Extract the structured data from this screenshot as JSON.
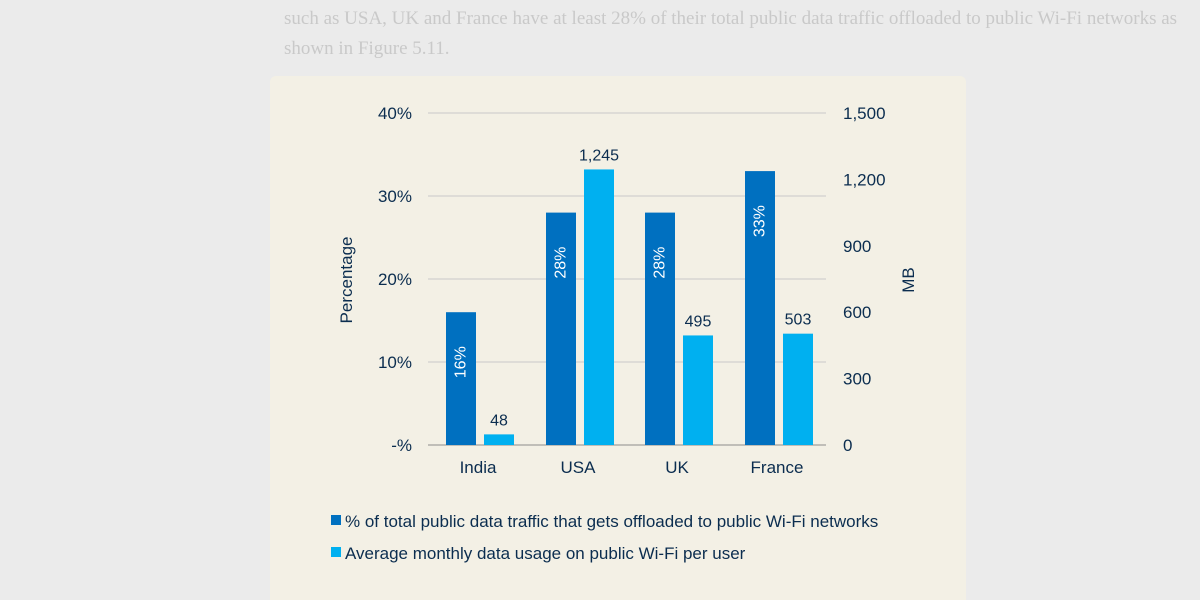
{
  "background_text": {
    "line1": "such as USA, UK and France have at least 28% of their total public data traffic offloaded to public Wi-Fi networks as",
    "line2": "shown in Figure 5.11."
  },
  "chart_data": {
    "type": "bar",
    "categories": [
      "India",
      "USA",
      "UK",
      "France"
    ],
    "series": [
      {
        "name": "% of total public data traffic that gets offloaded to public Wi-Fi networks",
        "axis": "left",
        "values": [
          16,
          28,
          28,
          33
        ],
        "labels": [
          "16%",
          "28%",
          "28%",
          "33%"
        ],
        "color": "#0070c0"
      },
      {
        "name": "Average monthly data usage on public Wi-Fi per user",
        "axis": "right",
        "values": [
          48,
          1245,
          495,
          503
        ],
        "labels": [
          "48",
          "1,245",
          "495",
          "503"
        ],
        "color": "#00b0f0"
      }
    ],
    "ylabel": "Percentage",
    "y2label": "MB",
    "ylim": [
      0,
      40
    ],
    "y2lim": [
      0,
      1500
    ],
    "yticks": [
      "-%",
      "10%",
      "20%",
      "30%",
      "40%"
    ],
    "y2ticks": [
      "0",
      "300",
      "600",
      "900",
      "1,200",
      "1,500"
    ],
    "grid": true,
    "legend_position": "bottom-left",
    "text_color": "#0b2d4f",
    "grid_color": "#c9c9c9",
    "panel_color": "#f3f0e5"
  }
}
